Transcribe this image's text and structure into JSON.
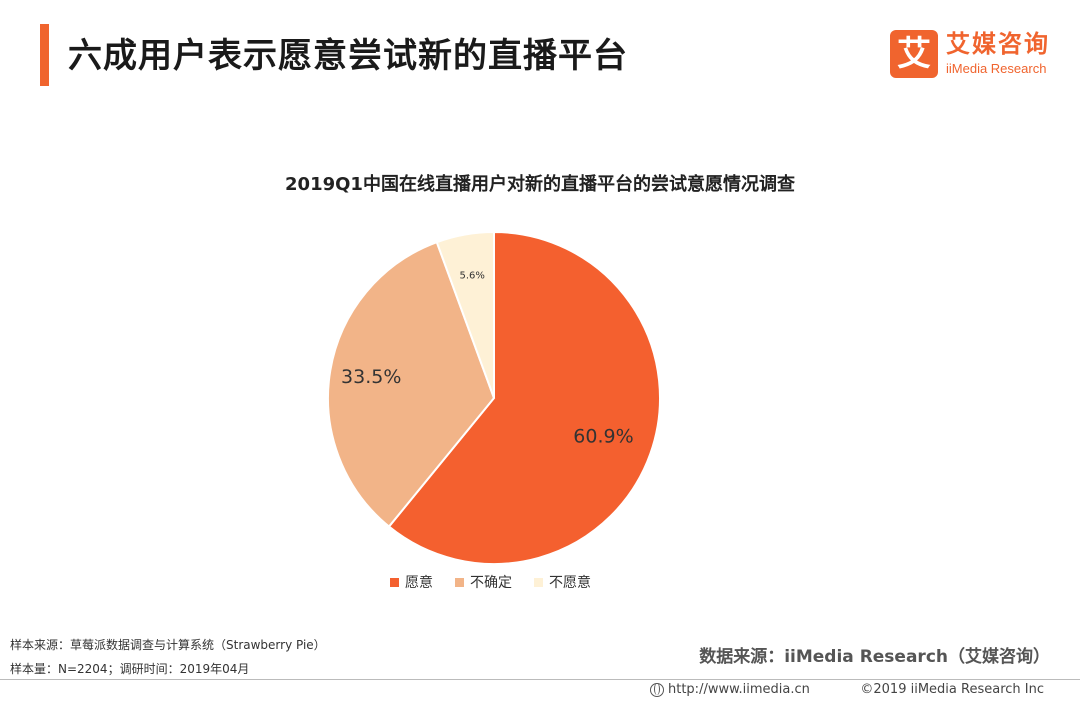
{
  "header": {
    "title": "六成用户表示愿意尝试新的直播平台",
    "logo_mark": "艾",
    "logo_cn": "艾媒咨询",
    "logo_en": "iiMedia Research"
  },
  "chart_data": {
    "type": "pie",
    "title": "2019Q1中国在线直播用户对新的直播平台的尝试意愿情况调查",
    "categories": [
      "愿意",
      "不确定",
      "不愿意"
    ],
    "values": [
      60.9,
      33.5,
      5.6
    ],
    "labels": [
      "60.9%",
      "33.5%",
      "5.6%"
    ],
    "colors": [
      "#f4602f",
      "#f2b488",
      "#fef1d6"
    ],
    "legend_position": "bottom"
  },
  "footer": {
    "sample_source": "样本来源：草莓派数据调查与计算系统（Strawberry Pie）",
    "sample_size": "样本量：N=2204；调研时间：2019年04月",
    "data_source": "数据来源：iiMedia Research（艾媒咨询）",
    "url": "http://www.iimedia.cn",
    "copyright": "©2019 iiMedia Research Inc"
  }
}
